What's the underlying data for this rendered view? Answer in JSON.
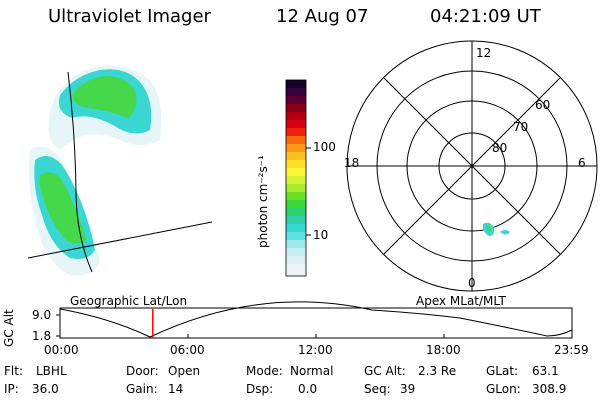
{
  "header": {
    "instrument": "Ultraviolet Imager",
    "date": "12 Aug 07",
    "time": "04:21:09 UT"
  },
  "colorbar": {
    "unit_label": "photon cm⁻²s⁻¹",
    "ticks": [
      "100",
      "10"
    ],
    "scale": "log"
  },
  "polar_plot": {
    "mlt_labels": [
      "12",
      "18",
      "6",
      "0"
    ],
    "lat_labels": [
      "60",
      "70",
      "80"
    ]
  },
  "map_labels": {
    "left": "Geographic Lat/Lon",
    "right": "Apex MLat/MLT"
  },
  "altitude_plot": {
    "ylabel": "GC Alt",
    "y_ticks": [
      "9.0",
      "1.8"
    ],
    "x_ticks": [
      "00:00",
      "06:00",
      "12:00",
      "18:00",
      "23:59"
    ],
    "current_time_marker_hours": 4.35,
    "marker_color": "#ff0000"
  },
  "info": {
    "flt": {
      "label": "Flt:",
      "value": "LBHL"
    },
    "ip": {
      "label": "IP:",
      "value": "36.0"
    },
    "door": {
      "label": "Door:",
      "value": "Open"
    },
    "gain": {
      "label": "Gain:",
      "value": "14"
    },
    "mode": {
      "label": "Mode:",
      "value": "Normal"
    },
    "dsp": {
      "label": "Dsp:",
      "value": "0.0"
    },
    "gcalt": {
      "label": "GC Alt:",
      "value": "2.3 Re"
    },
    "seq": {
      "label": "Seq:",
      "value": "39"
    },
    "glat": {
      "label": "GLat:",
      "value": "63.1"
    },
    "glon": {
      "label": "GLon:",
      "value": "308.9"
    }
  }
}
